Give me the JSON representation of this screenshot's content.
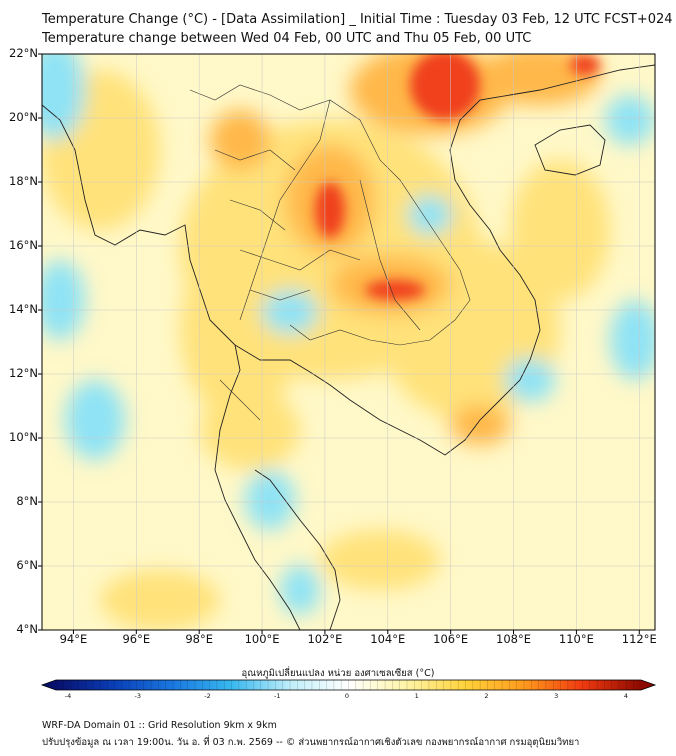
{
  "title": {
    "line1": "Temperature Change (°C) - [Data Assimilation] _ Initial Time : Tuesday 03 Feb, 12 UTC FCST+024",
    "line2": "Temperature change between Wed 04 Feb, 00 UTC and Thu 05 Feb, 00 UTC"
  },
  "lat_labels": [
    "22°N",
    "20°N",
    "18°N",
    "16°N",
    "14°N",
    "12°N",
    "10°N",
    "8°N",
    "6°N",
    "4°N"
  ],
  "lon_labels": [
    "94°E",
    "96°E",
    "98°E",
    "100°E",
    "102°E",
    "104°E",
    "106°E",
    "108°E",
    "110°E",
    "112°E"
  ],
  "colorbar": {
    "title": "อุณหภูมิเปลี่ยนแปลง หน่วย องศาเซลเซียส (°C)",
    "ticks": [
      "-4",
      "-3",
      "-2",
      "-1",
      "0",
      "1",
      "2",
      "3",
      "4"
    ],
    "colors": [
      "#08106e",
      "#0a3fb8",
      "#1a78e0",
      "#38b8f0",
      "#bfeefa",
      "#ffffff",
      "#fff4a6",
      "#ffd23a",
      "#ff9a1e",
      "#f03a10",
      "#8c0a00"
    ]
  },
  "footer": {
    "line1": "WRF-DA Domain 01 :: Grid Resolution 9km x 9km",
    "line2": "ปรับปรุงข้อมูล ณ เวลา 19:00น. วัน อ. ที่ 03 ก.พ. 2569 -- © ส่วนพยากรณ์อากาศเชิงตัวเลข กองพยากรณ์อากาศ กรมอุตุนิยมวิทยา"
  },
  "map_colors": {
    "base": "#fff8c8",
    "cyan": "#8fe3f5",
    "yellow": "#ffe27a",
    "orange": "#ffb84a",
    "red": "#f0401a",
    "coast": "#222222",
    "border": "#333333"
  }
}
